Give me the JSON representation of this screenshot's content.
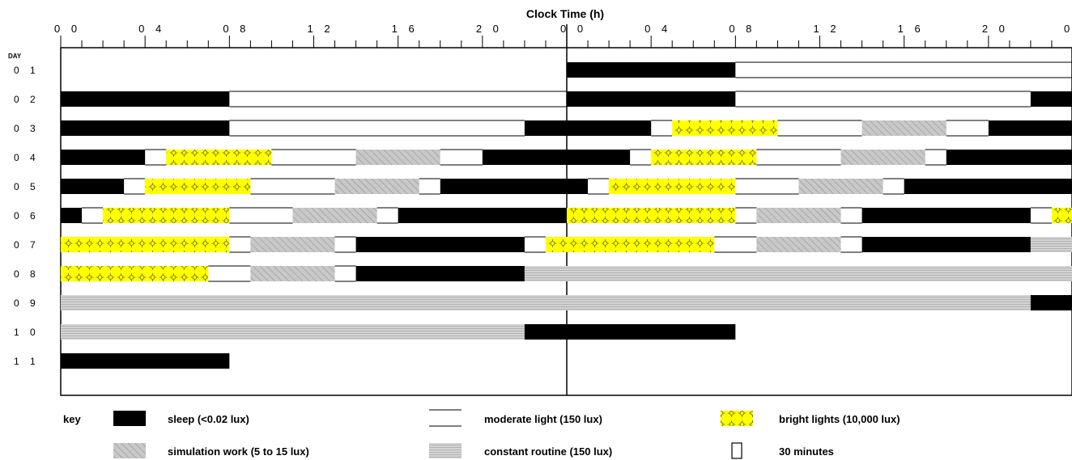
{
  "chart_data": {
    "type": "raster_schedule",
    "title": "Clock Time (h)",
    "y_header": "DAY",
    "tick_labels": [
      "0 0",
      "0 4",
      "0 8",
      "1 2",
      "1 6",
      "2 0",
      "0 0",
      "0 4",
      "0 8",
      "1 2",
      "1 6",
      "2 0",
      "0"
    ],
    "days": [
      {
        "label": "0 1",
        "segments": []
      },
      {
        "label": "0 2",
        "segments": [
          {
            "type": "sleep",
            "start": 0,
            "end": 8
          },
          {
            "type": "moderate",
            "start": 8,
            "end": 24
          }
        ]
      },
      {
        "label": "0 3",
        "segments": [
          {
            "type": "sleep",
            "start": 0,
            "end": 8
          },
          {
            "type": "moderate",
            "start": 8,
            "end": 22
          },
          {
            "type": "sleep",
            "start": 22,
            "end": 24
          }
        ]
      },
      {
        "label": "0 4",
        "segments": [
          {
            "type": "sleep",
            "start": 0,
            "end": 4
          },
          {
            "type": "moderate",
            "start": 4,
            "end": 5
          },
          {
            "type": "bright",
            "start": 5,
            "end": 10
          },
          {
            "type": "moderate",
            "start": 10,
            "end": 14
          },
          {
            "type": "sim",
            "start": 14,
            "end": 18
          },
          {
            "type": "moderate",
            "start": 18,
            "end": 20
          },
          {
            "type": "sleep",
            "start": 20,
            "end": 24
          }
        ]
      },
      {
        "label": "0 5",
        "segments": [
          {
            "type": "sleep",
            "start": 0,
            "end": 3
          },
          {
            "type": "moderate",
            "start": 3,
            "end": 4
          },
          {
            "type": "bright",
            "start": 4,
            "end": 9
          },
          {
            "type": "moderate",
            "start": 9,
            "end": 13
          },
          {
            "type": "sim",
            "start": 13,
            "end": 17
          },
          {
            "type": "moderate",
            "start": 17,
            "end": 18
          },
          {
            "type": "sleep",
            "start": 18,
            "end": 24
          }
        ]
      },
      {
        "label": "0 6",
        "segments": [
          {
            "type": "sleep",
            "start": 0,
            "end": 1
          },
          {
            "type": "moderate",
            "start": 1,
            "end": 2
          },
          {
            "type": "bright",
            "start": 2,
            "end": 8
          },
          {
            "type": "moderate",
            "start": 8,
            "end": 11
          },
          {
            "type": "sim",
            "start": 11,
            "end": 15
          },
          {
            "type": "moderate",
            "start": 15,
            "end": 16
          },
          {
            "type": "sleep",
            "start": 16,
            "end": 24
          }
        ]
      },
      {
        "label": "0 7",
        "segments": [
          {
            "type": "bright",
            "start": 0,
            "end": 8
          },
          {
            "type": "moderate",
            "start": 8,
            "end": 9
          },
          {
            "type": "sim",
            "start": 9,
            "end": 13
          },
          {
            "type": "moderate",
            "start": 13,
            "end": 14
          },
          {
            "type": "sleep",
            "start": 14,
            "end": 22
          },
          {
            "type": "moderate",
            "start": 22,
            "end": 23
          },
          {
            "type": "bright",
            "start": 23,
            "end": 24
          }
        ]
      },
      {
        "label": "0 8",
        "segments": [
          {
            "type": "bright",
            "start": 0,
            "end": 7
          },
          {
            "type": "moderate",
            "start": 7,
            "end": 9
          },
          {
            "type": "sim",
            "start": 9,
            "end": 13
          },
          {
            "type": "moderate",
            "start": 13,
            "end": 14
          },
          {
            "type": "sleep",
            "start": 14,
            "end": 22
          },
          {
            "type": "constant",
            "start": 22,
            "end": 24
          }
        ]
      },
      {
        "label": "0 9",
        "segments": [
          {
            "type": "constant",
            "start": 0,
            "end": 24
          }
        ]
      },
      {
        "label": "1 0",
        "segments": [
          {
            "type": "constant",
            "start": 0,
            "end": 22
          },
          {
            "type": "sleep",
            "start": 22,
            "end": 24
          }
        ]
      },
      {
        "label": "1 1",
        "segments": [
          {
            "type": "sleep",
            "start": 0,
            "end": 8
          }
        ]
      }
    ],
    "right_days": [
      {
        "segments": [
          {
            "type": "sleep",
            "start": 0,
            "end": 8
          },
          {
            "type": "moderate",
            "start": 8,
            "end": 24
          }
        ]
      },
      {
        "segments": [
          {
            "type": "sleep",
            "start": 0,
            "end": 8
          },
          {
            "type": "moderate",
            "start": 8,
            "end": 22
          },
          {
            "type": "sleep",
            "start": 22,
            "end": 24
          }
        ]
      },
      {
        "segments": [
          {
            "type": "sleep",
            "start": 0,
            "end": 4
          },
          {
            "type": "moderate",
            "start": 4,
            "end": 5
          },
          {
            "type": "bright",
            "start": 5,
            "end": 10
          },
          {
            "type": "moderate",
            "start": 10,
            "end": 14
          },
          {
            "type": "sim",
            "start": 14,
            "end": 18
          },
          {
            "type": "moderate",
            "start": 18,
            "end": 20
          },
          {
            "type": "sleep",
            "start": 20,
            "end": 24
          }
        ]
      },
      {
        "segments": [
          {
            "type": "sleep",
            "start": 0,
            "end": 3
          },
          {
            "type": "moderate",
            "start": 3,
            "end": 4
          },
          {
            "type": "bright",
            "start": 4,
            "end": 9
          },
          {
            "type": "moderate",
            "start": 9,
            "end": 13
          },
          {
            "type": "sim",
            "start": 13,
            "end": 17
          },
          {
            "type": "moderate",
            "start": 17,
            "end": 18
          },
          {
            "type": "sleep",
            "start": 18,
            "end": 24
          }
        ]
      },
      {
        "segments": [
          {
            "type": "sleep",
            "start": 0,
            "end": 1
          },
          {
            "type": "moderate",
            "start": 1,
            "end": 2
          },
          {
            "type": "bright",
            "start": 2,
            "end": 8
          },
          {
            "type": "moderate",
            "start": 8,
            "end": 11
          },
          {
            "type": "sim",
            "start": 11,
            "end": 15
          },
          {
            "type": "moderate",
            "start": 15,
            "end": 16
          },
          {
            "type": "sleep",
            "start": 16,
            "end": 24
          }
        ]
      },
      {
        "segments": [
          {
            "type": "bright",
            "start": 0,
            "end": 8
          },
          {
            "type": "moderate",
            "start": 8,
            "end": 9
          },
          {
            "type": "sim",
            "start": 9,
            "end": 13
          },
          {
            "type": "moderate",
            "start": 13,
            "end": 14
          },
          {
            "type": "sleep",
            "start": 14,
            "end": 22
          },
          {
            "type": "moderate",
            "start": 22,
            "end": 23
          },
          {
            "type": "bright",
            "start": 23,
            "end": 24
          }
        ]
      },
      {
        "segments": [
          {
            "type": "bright",
            "start": 0,
            "end": 7
          },
          {
            "type": "moderate",
            "start": 7,
            "end": 9
          },
          {
            "type": "sim",
            "start": 9,
            "end": 13
          },
          {
            "type": "moderate",
            "start": 13,
            "end": 14
          },
          {
            "type": "sleep",
            "start": 14,
            "end": 22
          },
          {
            "type": "constant",
            "start": 22,
            "end": 24
          }
        ]
      },
      {
        "segments": [
          {
            "type": "constant",
            "start": 0,
            "end": 24
          }
        ]
      },
      {
        "segments": [
          {
            "type": "constant",
            "start": 0,
            "end": 22
          },
          {
            "type": "sleep",
            "start": 22,
            "end": 24
          }
        ]
      },
      {
        "segments": [
          {
            "type": "sleep",
            "start": 0,
            "end": 8
          }
        ]
      },
      {
        "segments": []
      }
    ],
    "colors": {
      "sleep": "#000000",
      "bright": "#ffff00",
      "sim": "#c8c8c8",
      "constant": "#d2d2d2"
    }
  },
  "key": {
    "title": "key",
    "items": [
      {
        "type": "sleep",
        "label": "sleep (<0.02 lux)"
      },
      {
        "type": "moderate",
        "label": "moderate light (150 lux)"
      },
      {
        "type": "bright",
        "label": "bright lights (10,000 lux)"
      },
      {
        "type": "sim",
        "label": "simulation work (5 to 15 lux)"
      },
      {
        "type": "constant",
        "label": "constant routine (150 lux)"
      },
      {
        "type": "halfhour",
        "label": "30 minutes"
      }
    ]
  }
}
